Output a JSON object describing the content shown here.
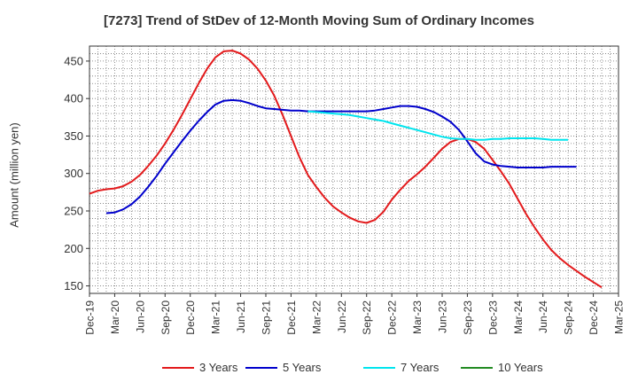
{
  "chart_data": {
    "type": "line",
    "title": "[7273]  Trend of StDev of 12-Month Moving Sum of Ordinary Incomes",
    "xlabel": "",
    "ylabel": "Amount (million yen)",
    "ylim": [
      140,
      470
    ],
    "yticks": [
      150,
      200,
      250,
      300,
      350,
      400,
      450
    ],
    "categories": [
      "Dec-19",
      "Mar-20",
      "Jun-20",
      "Sep-20",
      "Dec-20",
      "Mar-21",
      "Jun-21",
      "Sep-21",
      "Dec-21",
      "Mar-22",
      "Jun-22",
      "Sep-22",
      "Dec-22",
      "Mar-23",
      "Jun-23",
      "Sep-23",
      "Dec-23",
      "Mar-24",
      "Jun-24",
      "Sep-24",
      "Dec-24",
      "Mar-25"
    ],
    "grid": true,
    "legend_position": "bottom",
    "series": [
      {
        "name": "3 Years",
        "color": "#e31a1c",
        "points": [
          [
            0,
            273
          ],
          [
            0.33,
            277
          ],
          [
            0.67,
            279
          ],
          [
            1,
            280
          ],
          [
            1.33,
            283
          ],
          [
            1.67,
            289
          ],
          [
            2,
            298
          ],
          [
            2.33,
            310
          ],
          [
            2.67,
            324
          ],
          [
            3,
            340
          ],
          [
            3.33,
            358
          ],
          [
            3.67,
            378
          ],
          [
            4,
            399
          ],
          [
            4.33,
            420
          ],
          [
            4.67,
            440
          ],
          [
            5,
            455
          ],
          [
            5.33,
            463
          ],
          [
            5.67,
            464
          ],
          [
            6,
            460
          ],
          [
            6.33,
            452
          ],
          [
            6.67,
            440
          ],
          [
            7,
            424
          ],
          [
            7.33,
            404
          ],
          [
            7.67,
            378
          ],
          [
            8,
            350
          ],
          [
            8.33,
            322
          ],
          [
            8.67,
            298
          ],
          [
            9,
            282
          ],
          [
            9.33,
            268
          ],
          [
            9.67,
            256
          ],
          [
            10,
            248
          ],
          [
            10.33,
            241
          ],
          [
            10.67,
            236
          ],
          [
            11,
            234
          ],
          [
            11.33,
            238
          ],
          [
            11.67,
            249
          ],
          [
            12,
            265
          ],
          [
            12.33,
            278
          ],
          [
            12.67,
            290
          ],
          [
            13,
            299
          ],
          [
            13.33,
            309
          ],
          [
            13.67,
            321
          ],
          [
            14,
            333
          ],
          [
            14.33,
            342
          ],
          [
            14.67,
            346
          ],
          [
            15,
            346
          ],
          [
            15.33,
            342
          ],
          [
            15.67,
            333
          ],
          [
            16,
            318
          ],
          [
            16.33,
            303
          ],
          [
            16.67,
            286
          ],
          [
            17,
            266
          ],
          [
            17.33,
            246
          ],
          [
            17.67,
            228
          ],
          [
            18,
            212
          ],
          [
            18.33,
            198
          ],
          [
            18.67,
            187
          ],
          [
            19,
            178
          ],
          [
            19.33,
            170
          ],
          [
            19.67,
            162
          ],
          [
            20,
            155
          ],
          [
            20.33,
            148
          ]
        ]
      },
      {
        "name": "5 Years",
        "color": "#0000cc",
        "points": [
          [
            0.67,
            247
          ],
          [
            1,
            248
          ],
          [
            1.33,
            252
          ],
          [
            1.67,
            259
          ],
          [
            2,
            269
          ],
          [
            2.33,
            282
          ],
          [
            2.67,
            297
          ],
          [
            3,
            313
          ],
          [
            3.33,
            328
          ],
          [
            3.67,
            343
          ],
          [
            4,
            357
          ],
          [
            4.33,
            370
          ],
          [
            4.67,
            382
          ],
          [
            5,
            392
          ],
          [
            5.33,
            397
          ],
          [
            5.67,
            398
          ],
          [
            6,
            397
          ],
          [
            6.33,
            394
          ],
          [
            6.67,
            390
          ],
          [
            7,
            387
          ],
          [
            7.33,
            386
          ],
          [
            7.67,
            385
          ],
          [
            8,
            384
          ],
          [
            8.33,
            384
          ],
          [
            8.67,
            383
          ],
          [
            9,
            383
          ],
          [
            9.33,
            383
          ],
          [
            9.67,
            383
          ],
          [
            10,
            383
          ],
          [
            10.33,
            383
          ],
          [
            10.67,
            383
          ],
          [
            11,
            383
          ],
          [
            11.33,
            384
          ],
          [
            11.67,
            386
          ],
          [
            12,
            388
          ],
          [
            12.33,
            390
          ],
          [
            12.67,
            390
          ],
          [
            13,
            389
          ],
          [
            13.33,
            386
          ],
          [
            13.67,
            382
          ],
          [
            14,
            376
          ],
          [
            14.33,
            369
          ],
          [
            14.67,
            358
          ],
          [
            15,
            343
          ],
          [
            15.33,
            327
          ],
          [
            15.67,
            316
          ],
          [
            16,
            312
          ],
          [
            16.33,
            310
          ],
          [
            16.67,
            309
          ],
          [
            17,
            308
          ],
          [
            17.33,
            308
          ],
          [
            17.67,
            308
          ],
          [
            18,
            308
          ],
          [
            18.33,
            309
          ],
          [
            18.67,
            309
          ],
          [
            19,
            309
          ],
          [
            19.33,
            309
          ]
        ]
      },
      {
        "name": "7 Years",
        "color": "#00e5ee",
        "points": [
          [
            8.67,
            383
          ],
          [
            9,
            382
          ],
          [
            9.33,
            381
          ],
          [
            9.67,
            380
          ],
          [
            10,
            379
          ],
          [
            10.33,
            378
          ],
          [
            10.67,
            376
          ],
          [
            11,
            374
          ],
          [
            11.33,
            372
          ],
          [
            11.67,
            370
          ],
          [
            12,
            367
          ],
          [
            12.33,
            364
          ],
          [
            12.67,
            361
          ],
          [
            13,
            358
          ],
          [
            13.33,
            355
          ],
          [
            13.67,
            352
          ],
          [
            14,
            349
          ],
          [
            14.33,
            347
          ],
          [
            14.67,
            346
          ],
          [
            15,
            346
          ],
          [
            15.33,
            345
          ],
          [
            15.67,
            345
          ],
          [
            16,
            346
          ],
          [
            16.33,
            346
          ],
          [
            16.67,
            347
          ],
          [
            17,
            347
          ],
          [
            17.33,
            347
          ],
          [
            17.67,
            347
          ],
          [
            18,
            346
          ],
          [
            18.33,
            345
          ],
          [
            18.67,
            345
          ],
          [
            19,
            345
          ]
        ]
      },
      {
        "name": "10 Years",
        "color": "#228b22",
        "points": []
      }
    ]
  }
}
